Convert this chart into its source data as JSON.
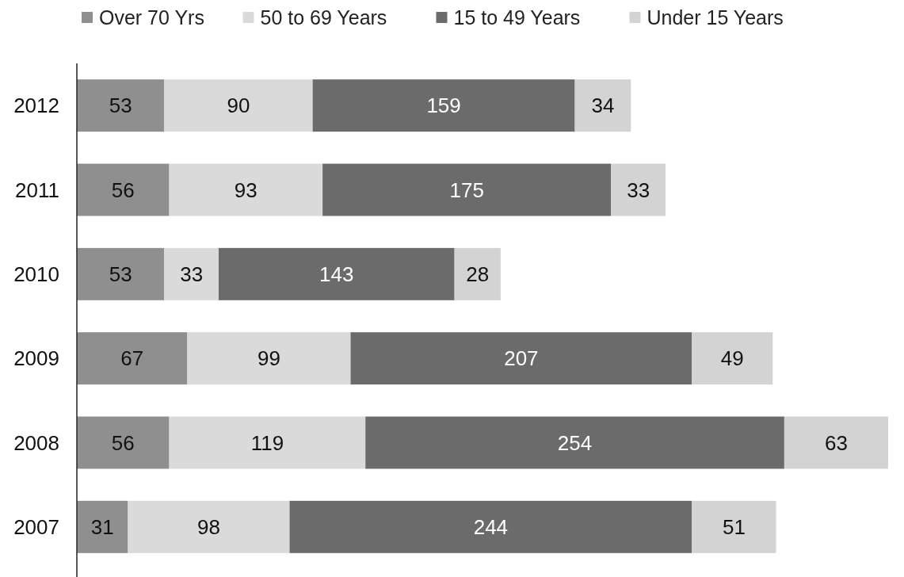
{
  "chart_data": {
    "type": "bar",
    "orientation": "horizontal",
    "stacked": true,
    "data_labels": true,
    "legend": "top left",
    "categories": [
      "2012",
      "2011",
      "2010",
      "2009",
      "2008",
      "2007"
    ],
    "series": [
      {
        "name": "Over 70 Yrs",
        "color": "#8f8f8f",
        "values": [
          53,
          56,
          53,
          67,
          56,
          31
        ]
      },
      {
        "name": "50 to 69 Years",
        "color": "#dadada",
        "values": [
          90,
          93,
          33,
          99,
          119,
          98
        ]
      },
      {
        "name": "15 to 49 Years",
        "color": "#6b6b6b",
        "values": [
          159,
          175,
          143,
          207,
          254,
          244
        ]
      },
      {
        "name": "Under 15 Years",
        "color": "#d3d3d3",
        "values": [
          34,
          33,
          28,
          49,
          63,
          51
        ]
      }
    ]
  }
}
